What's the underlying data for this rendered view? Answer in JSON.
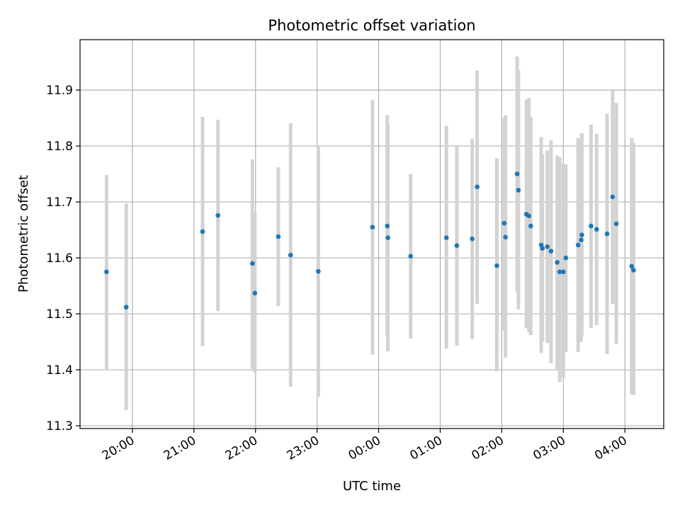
{
  "chart_data": {
    "type": "scatter",
    "title": "Photometric offset variation",
    "xlabel": "UTC time",
    "ylabel": "Photometric offset",
    "x_unit": "hours_since_midnight",
    "xlim": [
      -4.85,
      4.63
    ],
    "ylim": [
      11.295,
      11.99
    ],
    "grid": true,
    "x_ticks": [
      {
        "value": -4,
        "label": "20:00"
      },
      {
        "value": -3,
        "label": "21:00"
      },
      {
        "value": -2,
        "label": "22:00"
      },
      {
        "value": -1,
        "label": "23:00"
      },
      {
        "value": 0,
        "label": "00:00"
      },
      {
        "value": 1,
        "label": "01:00"
      },
      {
        "value": 2,
        "label": "02:00"
      },
      {
        "value": 3,
        "label": "03:00"
      },
      {
        "value": 4,
        "label": "04:00"
      }
    ],
    "y_ticks": [
      {
        "value": 11.3,
        "label": "11.3"
      },
      {
        "value": 11.4,
        "label": "11.4"
      },
      {
        "value": 11.5,
        "label": "11.5"
      },
      {
        "value": 11.6,
        "label": "11.6"
      },
      {
        "value": 11.7,
        "label": "11.7"
      },
      {
        "value": 11.8,
        "label": "11.8"
      },
      {
        "value": 11.9,
        "label": "11.9"
      }
    ],
    "colors": {
      "point": "#1f77b4",
      "errorbar": "#d3d3d3",
      "grid": "#b0b0b0"
    },
    "points": [
      {
        "x": -4.42,
        "y": 11.575,
        "lo": 11.4,
        "hi": 11.748
      },
      {
        "x": -4.1,
        "y": 11.512,
        "lo": 11.328,
        "hi": 11.697
      },
      {
        "x": -2.86,
        "y": 11.647,
        "lo": 11.442,
        "hi": 11.852
      },
      {
        "x": -2.61,
        "y": 11.676,
        "lo": 11.505,
        "hi": 11.847
      },
      {
        "x": -2.05,
        "y": 11.59,
        "lo": 11.402,
        "hi": 11.776
      },
      {
        "x": -2.01,
        "y": 11.537,
        "lo": 11.395,
        "hi": 11.68
      },
      {
        "x": -1.63,
        "y": 11.638,
        "lo": 11.514,
        "hi": 11.762
      },
      {
        "x": -1.43,
        "y": 11.605,
        "lo": 11.37,
        "hi": 11.841
      },
      {
        "x": -0.98,
        "y": 11.576,
        "lo": 11.352,
        "hi": 11.8
      },
      {
        "x": -0.1,
        "y": 11.655,
        "lo": 11.427,
        "hi": 11.882
      },
      {
        "x": 0.14,
        "y": 11.657,
        "lo": 11.46,
        "hi": 11.855
      },
      {
        "x": 0.15,
        "y": 11.636,
        "lo": 11.433,
        "hi": 11.84
      },
      {
        "x": 0.52,
        "y": 11.603,
        "lo": 11.456,
        "hi": 11.75
      },
      {
        "x": 1.1,
        "y": 11.636,
        "lo": 11.438,
        "hi": 11.836
      },
      {
        "x": 1.27,
        "y": 11.622,
        "lo": 11.443,
        "hi": 11.8
      },
      {
        "x": 1.52,
        "y": 11.634,
        "lo": 11.455,
        "hi": 11.813
      },
      {
        "x": 1.6,
        "y": 11.727,
        "lo": 11.518,
        "hi": 11.935
      },
      {
        "x": 1.92,
        "y": 11.586,
        "lo": 11.397,
        "hi": 11.778
      },
      {
        "x": 2.04,
        "y": 11.662,
        "lo": 11.47,
        "hi": 11.85
      },
      {
        "x": 2.06,
        "y": 11.637,
        "lo": 11.422,
        "hi": 11.855
      },
      {
        "x": 2.25,
        "y": 11.75,
        "lo": 11.54,
        "hi": 11.96
      },
      {
        "x": 2.27,
        "y": 11.721,
        "lo": 11.508,
        "hi": 11.935
      },
      {
        "x": 2.4,
        "y": 11.678,
        "lo": 11.475,
        "hi": 11.883
      },
      {
        "x": 2.44,
        "y": 11.675,
        "lo": 11.467,
        "hi": 11.886
      },
      {
        "x": 2.47,
        "y": 11.657,
        "lo": 11.462,
        "hi": 11.852
      },
      {
        "x": 2.64,
        "y": 11.623,
        "lo": 11.43,
        "hi": 11.816
      },
      {
        "x": 2.66,
        "y": 11.617,
        "lo": 11.45,
        "hi": 11.785
      },
      {
        "x": 2.74,
        "y": 11.62,
        "lo": 11.448,
        "hi": 11.792
      },
      {
        "x": 2.8,
        "y": 11.612,
        "lo": 11.412,
        "hi": 11.81
      },
      {
        "x": 2.9,
        "y": 11.592,
        "lo": 11.4,
        "hi": 11.783
      },
      {
        "x": 2.94,
        "y": 11.575,
        "lo": 11.378,
        "hi": 11.78
      },
      {
        "x": 3.0,
        "y": 11.575,
        "lo": 11.385,
        "hi": 11.768
      },
      {
        "x": 3.04,
        "y": 11.6,
        "lo": 11.432,
        "hi": 11.767
      },
      {
        "x": 3.24,
        "y": 11.623,
        "lo": 11.432,
        "hi": 11.814
      },
      {
        "x": 3.29,
        "y": 11.632,
        "lo": 11.45,
        "hi": 11.813
      },
      {
        "x": 3.3,
        "y": 11.641,
        "lo": 11.462,
        "hi": 11.823
      },
      {
        "x": 3.45,
        "y": 11.657,
        "lo": 11.475,
        "hi": 11.838
      },
      {
        "x": 3.54,
        "y": 11.651,
        "lo": 11.48,
        "hi": 11.822
      },
      {
        "x": 3.71,
        "y": 11.643,
        "lo": 11.428,
        "hi": 11.858
      },
      {
        "x": 3.8,
        "y": 11.709,
        "lo": 11.518,
        "hi": 11.899
      },
      {
        "x": 3.86,
        "y": 11.661,
        "lo": 11.446,
        "hi": 11.877
      },
      {
        "x": 4.11,
        "y": 11.585,
        "lo": 11.356,
        "hi": 11.814
      },
      {
        "x": 4.14,
        "y": 11.578,
        "lo": 11.355,
        "hi": 11.805
      }
    ]
  }
}
